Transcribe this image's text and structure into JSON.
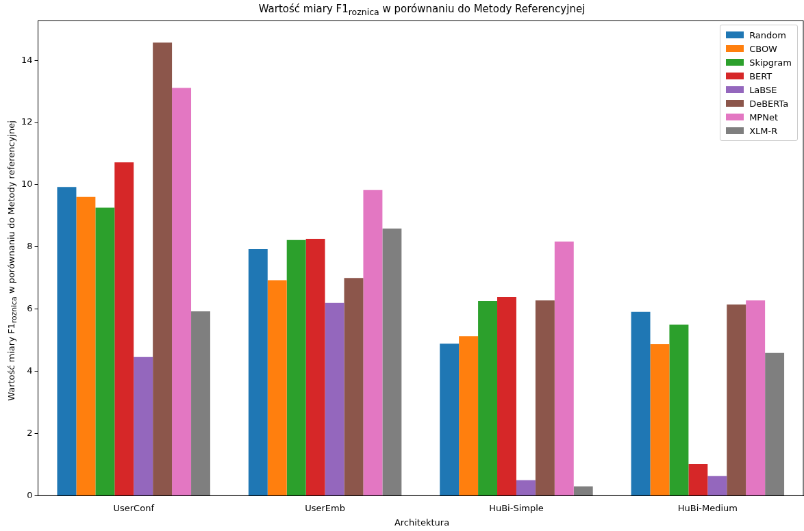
{
  "chart_data": {
    "type": "bar",
    "title": "Wartość miary F1$_{roznica}$ w porównaniu do Metody Referencyjnej",
    "xlabel": "Architektura",
    "ylabel": "Wartość miary F1$_{roznica}$ w porównaniu do Metody referencyjnej",
    "categories": [
      "UserConf",
      "UserEmb",
      "HuBi-Simple",
      "HuBi-Medium"
    ],
    "series": [
      {
        "name": "Random",
        "color": "#1f77b4",
        "values": [
          9.93,
          7.93,
          4.89,
          5.91
        ]
      },
      {
        "name": "CBOW",
        "color": "#ff7f0e",
        "values": [
          9.61,
          6.93,
          5.13,
          4.87
        ]
      },
      {
        "name": "Skipgram",
        "color": "#2ca02c",
        "values": [
          9.26,
          8.22,
          6.26,
          5.5
        ]
      },
      {
        "name": "BERT",
        "color": "#d62728",
        "values": [
          10.72,
          8.26,
          6.39,
          1.02
        ]
      },
      {
        "name": "LaBSE",
        "color": "#9467bd",
        "values": [
          4.46,
          6.2,
          0.5,
          0.63
        ]
      },
      {
        "name": "DeBERTa",
        "color": "#8c564b",
        "values": [
          14.57,
          7.0,
          6.28,
          6.15
        ]
      },
      {
        "name": "MPNet",
        "color": "#e377c2",
        "values": [
          13.11,
          9.83,
          8.17,
          6.28
        ]
      },
      {
        "name": "XLM-R",
        "color": "#7f7f7f",
        "values": [
          5.93,
          8.59,
          0.3,
          4.59
        ]
      }
    ],
    "ylim": [
      0,
      15.28
    ],
    "yticks": [
      0,
      2,
      4,
      6,
      8,
      10,
      12,
      14
    ],
    "legend": "top right",
    "grid": false
  }
}
